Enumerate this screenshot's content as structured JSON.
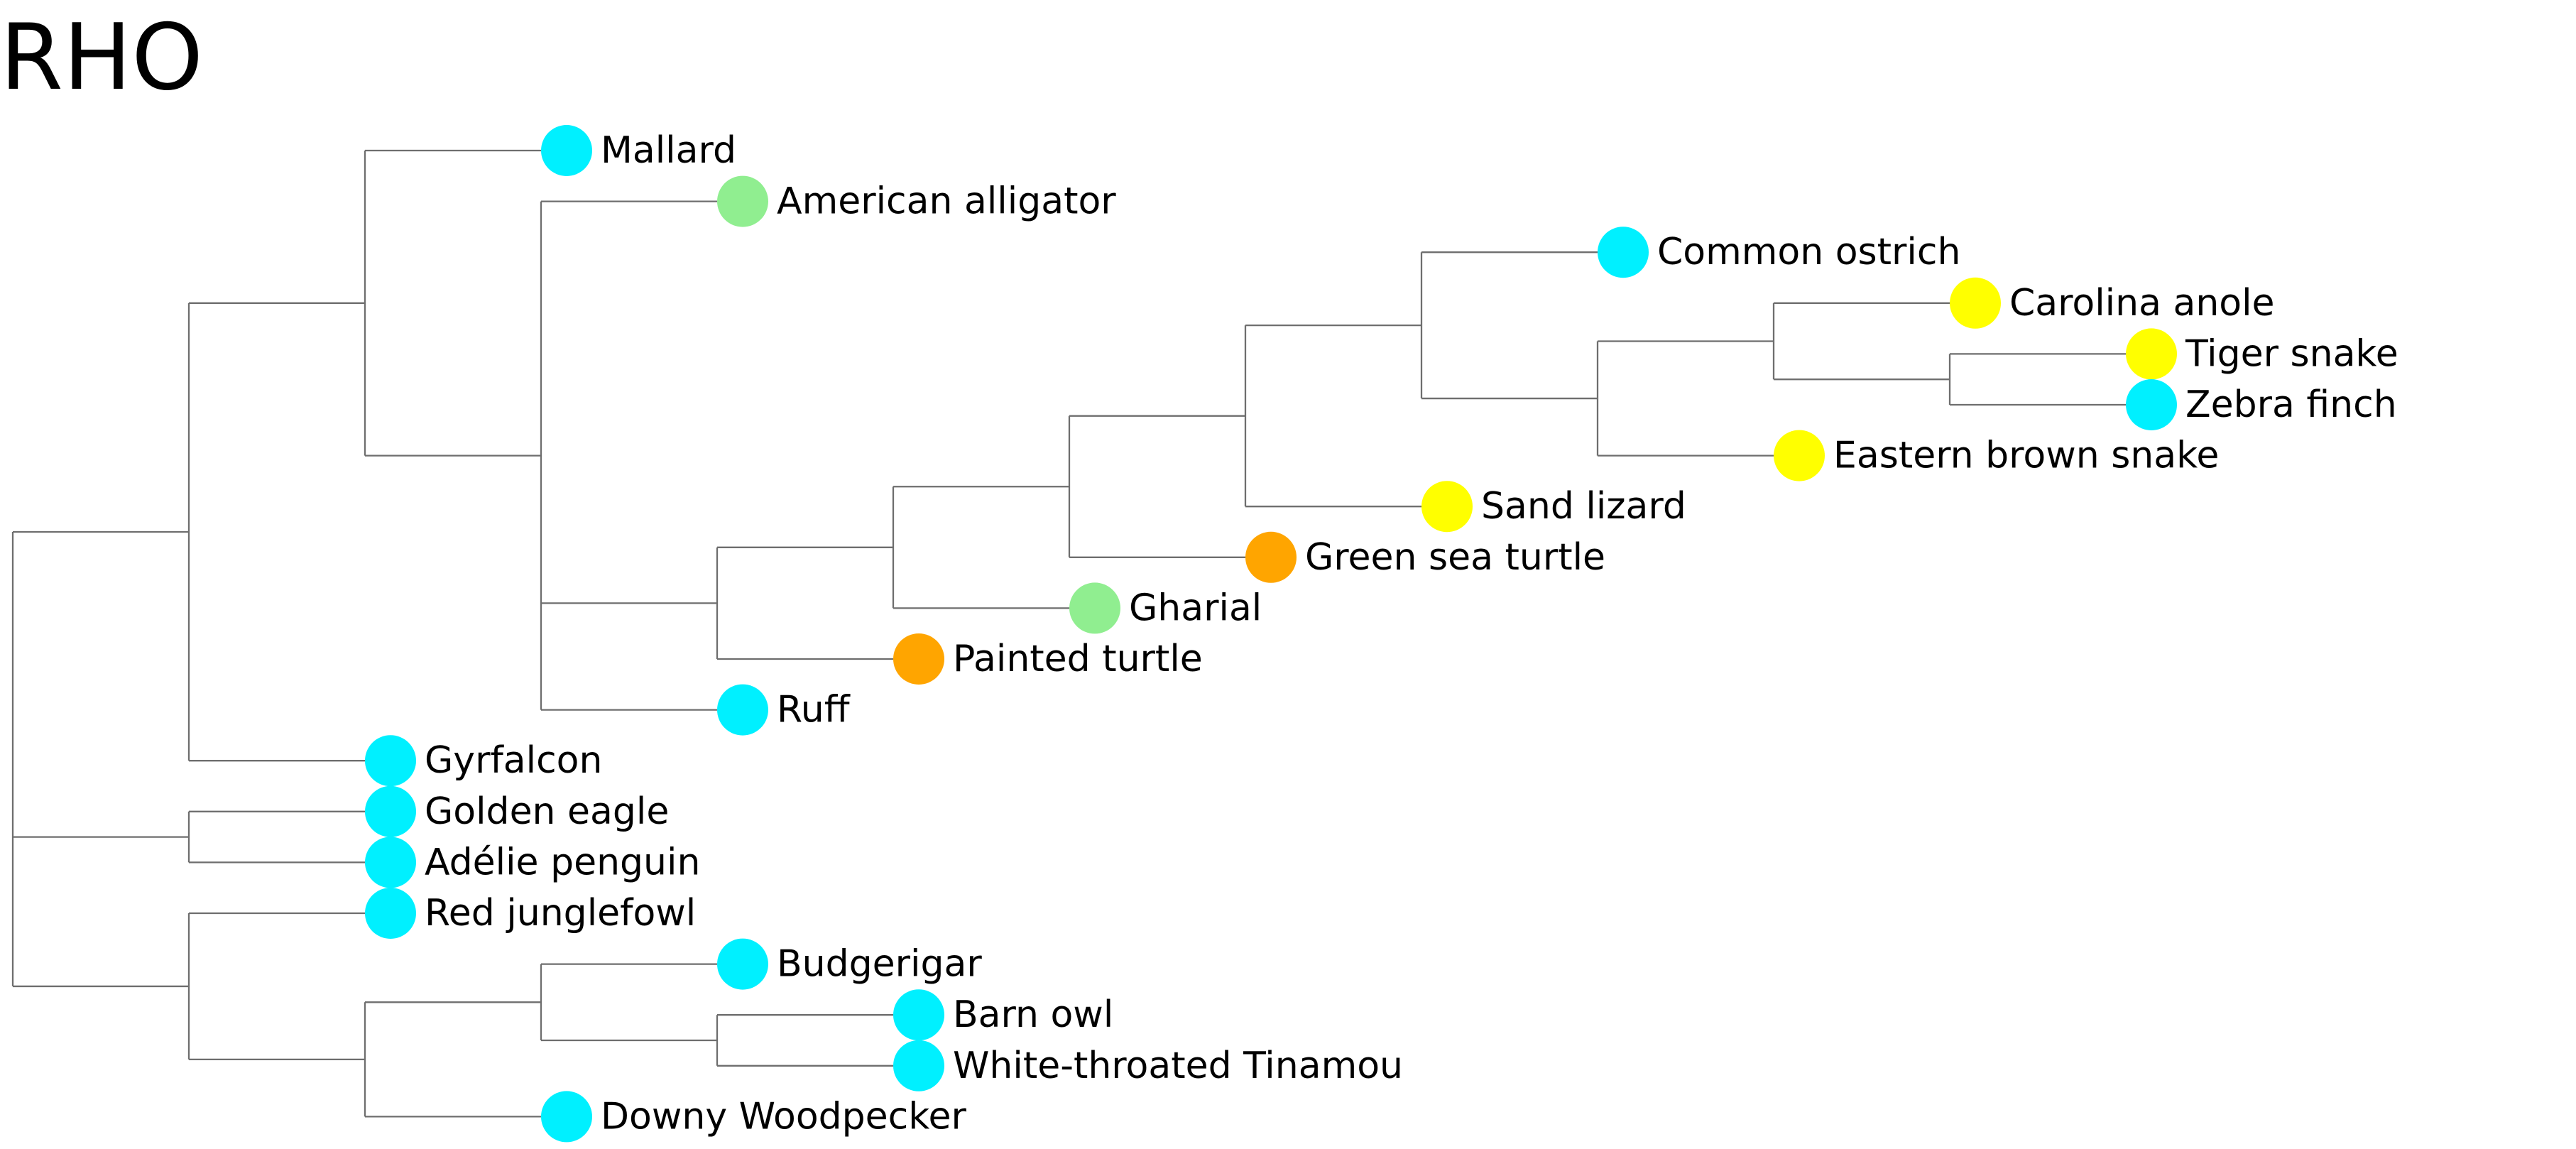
{
  "title": "RHO",
  "colors": {
    "cyan": "#00f0ff",
    "green": "#90ee90",
    "yellow": "#ffff00",
    "orange": "#ffa500",
    "branch": "#6e6e6e"
  },
  "leaves": [
    {
      "id": "mallard",
      "label": "Mallard",
      "color": "cyan"
    },
    {
      "id": "american-alligator",
      "label": "American alligator",
      "color": "green"
    },
    {
      "id": "common-ostrich",
      "label": "Common ostrich",
      "color": "cyan"
    },
    {
      "id": "carolina-anole",
      "label": "Carolina anole",
      "color": "yellow"
    },
    {
      "id": "tiger-snake",
      "label": "Tiger snake",
      "color": "yellow"
    },
    {
      "id": "zebra-finch",
      "label": "Zebra finch",
      "color": "cyan"
    },
    {
      "id": "eastern-brown-snake",
      "label": "Eastern brown snake",
      "color": "yellow"
    },
    {
      "id": "sand-lizard",
      "label": "Sand lizard",
      "color": "yellow"
    },
    {
      "id": "green-sea-turtle",
      "label": "Green sea turtle",
      "color": "orange"
    },
    {
      "id": "gharial",
      "label": "Gharial",
      "color": "green"
    },
    {
      "id": "painted-turtle",
      "label": "Painted turtle",
      "color": "orange"
    },
    {
      "id": "ruff",
      "label": "Ruff",
      "color": "cyan"
    },
    {
      "id": "gyrfalcon",
      "label": "Gyrfalcon",
      "color": "cyan"
    },
    {
      "id": "golden-eagle",
      "label": "Golden eagle",
      "color": "cyan"
    },
    {
      "id": "adelie-penguin",
      "label": "Adélie penguin",
      "color": "cyan"
    },
    {
      "id": "red-junglefowl",
      "label": "Red junglefowl",
      "color": "cyan"
    },
    {
      "id": "budgerigar",
      "label": "Budgerigar",
      "color": "cyan"
    },
    {
      "id": "barn-owl",
      "label": "Barn owl",
      "color": "cyan"
    },
    {
      "id": "white-throated-tinamou",
      "label": "White-throated Tinamou",
      "color": "cyan"
    },
    {
      "id": "downy-woodpecker",
      "label": "Downy Woodpecker",
      "color": "cyan"
    }
  ],
  "tree": {
    "children": [
      {
        "children": [
          {
            "children": [
              {
                "leaf": "mallard"
              },
              {
                "children": [
                  {
                    "leaf": "american-alligator"
                  },
                  {
                    "children": [
                      {
                        "children": [
                          {
                            "children": [
                              {
                                "children": [
                                  {
                                    "children": [
                                      {
                                        "leaf": "common-ostrich"
                                      },
                                      {
                                        "children": [
                                          {
                                            "children": [
                                              {
                                                "leaf": "carolina-anole"
                                              },
                                              {
                                                "children": [
                                                  {
                                                    "leaf": "tiger-snake"
                                                  },
                                                  {
                                                    "leaf": "zebra-finch"
                                                  }
                                                ]
                                              }
                                            ]
                                          },
                                          {
                                            "leaf": "eastern-brown-snake"
                                          }
                                        ]
                                      }
                                    ]
                                  },
                                  {
                                    "leaf": "sand-lizard"
                                  }
                                ]
                              },
                              {
                                "leaf": "green-sea-turtle"
                              }
                            ]
                          },
                          {
                            "leaf": "gharial"
                          }
                        ]
                      },
                      {
                        "leaf": "painted-turtle"
                      }
                    ]
                  },
                  {
                    "leaf": "ruff"
                  }
                ]
              }
            ]
          },
          {
            "leaf": "gyrfalcon"
          }
        ]
      },
      {
        "children": [
          {
            "leaf": "golden-eagle"
          },
          {
            "leaf": "adelie-penguin"
          }
        ]
      },
      {
        "children": [
          {
            "leaf": "red-junglefowl"
          },
          {
            "children": [
              {
                "children": [
                  {
                    "leaf": "budgerigar"
                  },
                  {
                    "children": [
                      {
                        "leaf": "barn-owl"
                      },
                      {
                        "leaf": "white-throated-tinamou"
                      }
                    ]
                  }
                ]
              },
              {
                "leaf": "downy-woodpecker"
              }
            ]
          }
        ]
      }
    ]
  }
}
